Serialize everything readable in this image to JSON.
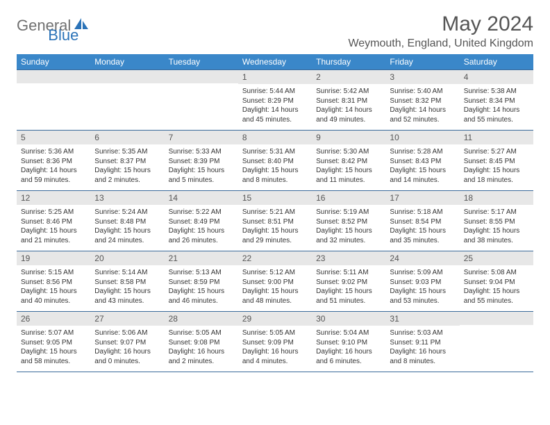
{
  "logo": {
    "gray": "General",
    "blue": "Blue"
  },
  "title": "May 2024",
  "location": "Weymouth, England, United Kingdom",
  "colors": {
    "header_bg": "#3a87c9",
    "row_border": "#3a6a9a",
    "daynum_bg": "#e7e7e7",
    "logo_gray": "#707070",
    "logo_blue": "#2b73b8",
    "text": "#333333",
    "title_color": "#555555"
  },
  "day_headers": [
    "Sunday",
    "Monday",
    "Tuesday",
    "Wednesday",
    "Thursday",
    "Friday",
    "Saturday"
  ],
  "weeks": [
    [
      {
        "n": "",
        "sr": "",
        "ss": "",
        "dl": ""
      },
      {
        "n": "",
        "sr": "",
        "ss": "",
        "dl": ""
      },
      {
        "n": "",
        "sr": "",
        "ss": "",
        "dl": ""
      },
      {
        "n": "1",
        "sr": "5:44 AM",
        "ss": "8:29 PM",
        "dl": "14 hours and 45 minutes."
      },
      {
        "n": "2",
        "sr": "5:42 AM",
        "ss": "8:31 PM",
        "dl": "14 hours and 49 minutes."
      },
      {
        "n": "3",
        "sr": "5:40 AM",
        "ss": "8:32 PM",
        "dl": "14 hours and 52 minutes."
      },
      {
        "n": "4",
        "sr": "5:38 AM",
        "ss": "8:34 PM",
        "dl": "14 hours and 55 minutes."
      }
    ],
    [
      {
        "n": "5",
        "sr": "5:36 AM",
        "ss": "8:36 PM",
        "dl": "14 hours and 59 minutes."
      },
      {
        "n": "6",
        "sr": "5:35 AM",
        "ss": "8:37 PM",
        "dl": "15 hours and 2 minutes."
      },
      {
        "n": "7",
        "sr": "5:33 AM",
        "ss": "8:39 PM",
        "dl": "15 hours and 5 minutes."
      },
      {
        "n": "8",
        "sr": "5:31 AM",
        "ss": "8:40 PM",
        "dl": "15 hours and 8 minutes."
      },
      {
        "n": "9",
        "sr": "5:30 AM",
        "ss": "8:42 PM",
        "dl": "15 hours and 11 minutes."
      },
      {
        "n": "10",
        "sr": "5:28 AM",
        "ss": "8:43 PM",
        "dl": "15 hours and 14 minutes."
      },
      {
        "n": "11",
        "sr": "5:27 AM",
        "ss": "8:45 PM",
        "dl": "15 hours and 18 minutes."
      }
    ],
    [
      {
        "n": "12",
        "sr": "5:25 AM",
        "ss": "8:46 PM",
        "dl": "15 hours and 21 minutes."
      },
      {
        "n": "13",
        "sr": "5:24 AM",
        "ss": "8:48 PM",
        "dl": "15 hours and 24 minutes."
      },
      {
        "n": "14",
        "sr": "5:22 AM",
        "ss": "8:49 PM",
        "dl": "15 hours and 26 minutes."
      },
      {
        "n": "15",
        "sr": "5:21 AM",
        "ss": "8:51 PM",
        "dl": "15 hours and 29 minutes."
      },
      {
        "n": "16",
        "sr": "5:19 AM",
        "ss": "8:52 PM",
        "dl": "15 hours and 32 minutes."
      },
      {
        "n": "17",
        "sr": "5:18 AM",
        "ss": "8:54 PM",
        "dl": "15 hours and 35 minutes."
      },
      {
        "n": "18",
        "sr": "5:17 AM",
        "ss": "8:55 PM",
        "dl": "15 hours and 38 minutes."
      }
    ],
    [
      {
        "n": "19",
        "sr": "5:15 AM",
        "ss": "8:56 PM",
        "dl": "15 hours and 40 minutes."
      },
      {
        "n": "20",
        "sr": "5:14 AM",
        "ss": "8:58 PM",
        "dl": "15 hours and 43 minutes."
      },
      {
        "n": "21",
        "sr": "5:13 AM",
        "ss": "8:59 PM",
        "dl": "15 hours and 46 minutes."
      },
      {
        "n": "22",
        "sr": "5:12 AM",
        "ss": "9:00 PM",
        "dl": "15 hours and 48 minutes."
      },
      {
        "n": "23",
        "sr": "5:11 AM",
        "ss": "9:02 PM",
        "dl": "15 hours and 51 minutes."
      },
      {
        "n": "24",
        "sr": "5:09 AM",
        "ss": "9:03 PM",
        "dl": "15 hours and 53 minutes."
      },
      {
        "n": "25",
        "sr": "5:08 AM",
        "ss": "9:04 PM",
        "dl": "15 hours and 55 minutes."
      }
    ],
    [
      {
        "n": "26",
        "sr": "5:07 AM",
        "ss": "9:05 PM",
        "dl": "15 hours and 58 minutes."
      },
      {
        "n": "27",
        "sr": "5:06 AM",
        "ss": "9:07 PM",
        "dl": "16 hours and 0 minutes."
      },
      {
        "n": "28",
        "sr": "5:05 AM",
        "ss": "9:08 PM",
        "dl": "16 hours and 2 minutes."
      },
      {
        "n": "29",
        "sr": "5:05 AM",
        "ss": "9:09 PM",
        "dl": "16 hours and 4 minutes."
      },
      {
        "n": "30",
        "sr": "5:04 AM",
        "ss": "9:10 PM",
        "dl": "16 hours and 6 minutes."
      },
      {
        "n": "31",
        "sr": "5:03 AM",
        "ss": "9:11 PM",
        "dl": "16 hours and 8 minutes."
      },
      {
        "n": "",
        "sr": "",
        "ss": "",
        "dl": ""
      }
    ]
  ],
  "labels": {
    "sunrise": "Sunrise:",
    "sunset": "Sunset:",
    "daylight": "Daylight:"
  }
}
